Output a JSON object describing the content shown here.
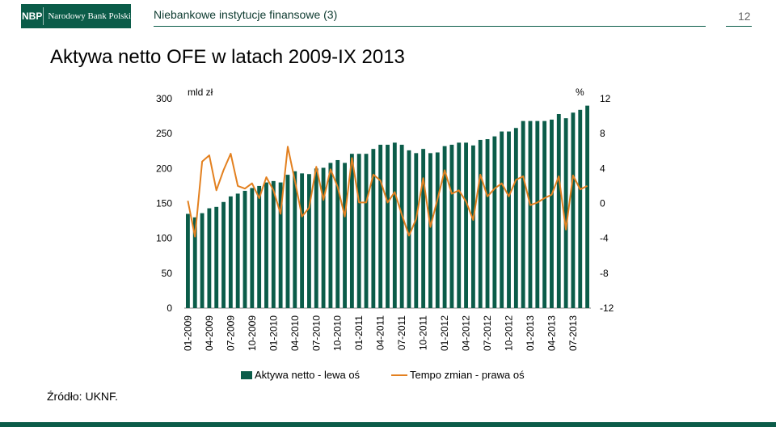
{
  "header": {
    "logo_mark": "NBP",
    "logo_name": "Narodowy Bank Polski",
    "title": "Niebankowe instytucje finansowe (3)",
    "page_number": "12"
  },
  "main_title": "Aktywa netto OFE w latach 2009-IX 2013",
  "source": "Źródło: UKNF.",
  "colors": {
    "brand": "#0b5c49",
    "bars": "#0b5c49",
    "line": "#e3801f"
  },
  "chart_data": {
    "type": "bar+line",
    "left_axis_label": "mld zł",
    "right_axis_label": "%",
    "left_ylim": [
      0,
      300
    ],
    "right_ylim": [
      -12,
      12
    ],
    "left_ticks": [
      0,
      50,
      100,
      150,
      200,
      250,
      300
    ],
    "right_ticks": [
      -12,
      -8,
      -4,
      0,
      4,
      8,
      12
    ],
    "x_tick_labels": [
      "01-2009",
      "04-2009",
      "07-2009",
      "10-2009",
      "01-2010",
      "04-2010",
      "07-2010",
      "10-2010",
      "01-2011",
      "04-2011",
      "07-2011",
      "10-2011",
      "01-2012",
      "04-2012",
      "07-2012",
      "10-2012",
      "01-2013",
      "04-2013",
      "07-2013"
    ],
    "legend": [
      "Aktywa netto - lewa oś",
      "Tempo zmian - prawa oś"
    ],
    "series": [
      {
        "name": "Aktywa netto - lewa oś",
        "axis": "left",
        "type": "bar",
        "values": [
          135,
          130,
          136,
          143,
          145,
          152,
          160,
          164,
          168,
          172,
          175,
          180,
          182,
          180,
          191,
          196,
          193,
          192,
          200,
          201,
          208,
          212,
          208,
          221,
          221,
          221,
          228,
          234,
          234,
          237,
          234,
          226,
          222,
          228,
          222,
          223,
          232,
          234,
          237,
          237,
          233,
          241,
          242,
          246,
          253,
          253,
          258,
          268,
          268,
          268,
          268,
          270,
          278,
          272,
          280,
          284,
          290
        ]
      },
      {
        "name": "Tempo zmian - prawa oś",
        "axis": "right",
        "type": "line",
        "values": [
          0.3,
          -3.8,
          4.8,
          5.5,
          1.5,
          3.8,
          5.7,
          2.0,
          1.7,
          2.3,
          0.6,
          3.0,
          1.5,
          -1.2,
          6.5,
          2.6,
          -1.5,
          -0.5,
          4.2,
          0.4,
          3.9,
          1.9,
          -1.5,
          5.2,
          0.1,
          0.1,
          3.3,
          2.6,
          0.1,
          1.3,
          -1.3,
          -3.7,
          -1.8,
          2.9,
          -2.7,
          0.5,
          3.8,
          1.1,
          1.5,
          0.2,
          -1.9,
          3.3,
          0.8,
          1.7,
          2.3,
          0.8,
          2.7,
          3.1,
          -0.2,
          0.1,
          0.6,
          1.0,
          3.1,
          -3.0,
          3.2,
          1.6,
          2.0
        ]
      }
    ]
  }
}
